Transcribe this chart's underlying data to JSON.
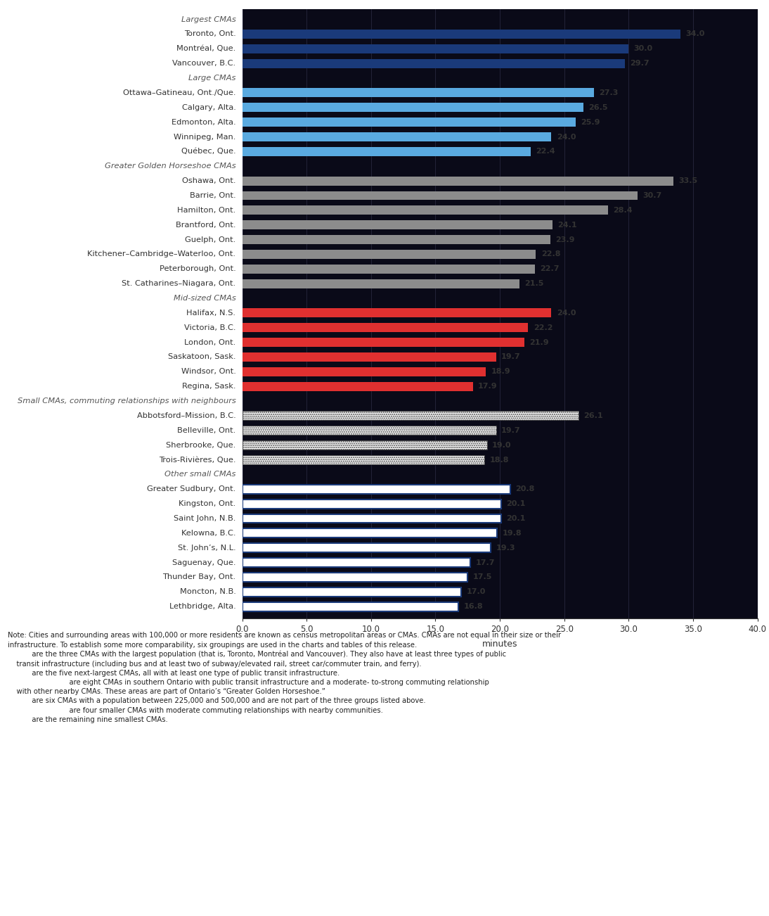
{
  "title": "",
  "xlabel": "minutes",
  "xlim": [
    0,
    40
  ],
  "xticks": [
    0.0,
    5.0,
    10.0,
    15.0,
    20.0,
    25.0,
    30.0,
    35.0,
    40.0
  ],
  "fig_bg": "#ffffff",
  "chart_bg": "#0a0a18",
  "bar_height": 0.62,
  "categories": [
    "Largest CMAs",
    "Toronto, Ont.",
    "Montréal, Que.",
    "Vancouver, B.C.",
    "Large CMAs",
    "Ottawa–Gatineau, Ont./Que.",
    "Calgary, Alta.",
    "Edmonton, Alta.",
    "Winnipeg, Man.",
    "Québec, Que.",
    "Greater Golden Horseshoe CMAs",
    "Oshawa, Ont.",
    "Barrie, Ont.",
    "Hamilton, Ont.",
    "Brantford, Ont.",
    "Guelph, Ont.",
    "Kitchener–Cambridge–Waterloo, Ont.",
    "Peterborough, Ont.",
    "St. Catharines–Niagara, Ont.",
    "Mid-sized CMAs",
    "Halifax, N.S.",
    "Victoria, B.C.",
    "London, Ont.",
    "Saskatoon, Sask.",
    "Windsor, Ont.",
    "Regina, Sask.",
    "Small CMAs, commuting relationships with neighbours",
    "Abbotsford–Mission, B.C.",
    "Belleville, Ont.",
    "Sherbrooke, Que.",
    "Trois-Rivières, Que.",
    "Other small CMAs",
    "Greater Sudbury, Ont.",
    "Kingston, Ont.",
    "Saint John, N.B.",
    "Kelowna, B.C.",
    "St. John’s, N.L.",
    "Saguenay, Que.",
    "Thunder Bay, Ont.",
    "Moncton, N.B.",
    "Lethbridge, Alta."
  ],
  "values": [
    0,
    34.0,
    30.0,
    29.7,
    0,
    27.3,
    26.5,
    25.9,
    24.0,
    22.4,
    0,
    33.5,
    30.7,
    28.4,
    24.1,
    23.9,
    22.8,
    22.7,
    21.5,
    0,
    24.0,
    22.2,
    21.9,
    19.7,
    18.9,
    17.9,
    0,
    26.1,
    19.7,
    19.0,
    18.8,
    0,
    20.8,
    20.1,
    20.1,
    19.8,
    19.3,
    17.7,
    17.5,
    17.0,
    16.8
  ],
  "bar_colors": [
    "header",
    "#1a3a7a",
    "#1a3a7a",
    "#1a3a7a",
    "header",
    "#5aaae0",
    "#5aaae0",
    "#5aaae0",
    "#5aaae0",
    "#5aaae0",
    "header",
    "#8c8c8c",
    "#8c8c8c",
    "#8c8c8c",
    "#8c8c8c",
    "#8c8c8c",
    "#8c8c8c",
    "#8c8c8c",
    "#8c8c8c",
    "header",
    "#e03030",
    "#e03030",
    "#e03030",
    "#e03030",
    "#e03030",
    "#e03030",
    "header",
    "dotted",
    "dotted",
    "dotted",
    "dotted",
    "header",
    "outline",
    "outline",
    "outline",
    "outline",
    "outline",
    "outline",
    "outline",
    "outline",
    "outline"
  ],
  "label_text_color": "#333333",
  "header_text_color": "#555555",
  "value_label_color": "#333333",
  "axis_text_color": "#333333",
  "note_lines": [
    "Note: Cities and surrounding areas with 100,000 or more residents are known as census metropolitan areas or CMAs. CMAs are not equal in their size or their",
    "infrastructure. To establish some more comparability, six groupings are used in the charts and tables of this release.",
    "           are the three CMAs with the largest population (that is, Toronto, Montréal and Vancouver). They also have at least three types of public",
    "    transit infrastructure (including bus and at least two of subway/elevated rail, street car/commuter train, and ferry).",
    "           are the five next-largest CMAs, all with at least one type of public transit infrastructure.",
    "                            are eight CMAs in southern Ontario with public transit infrastructure and a moderate- to-strong commuting relationship",
    "    with other nearby CMAs. These areas are part of Ontario’s “Greater Golden Horseshoe.”",
    "           are six CMAs with a population between 225,000 and 500,000 and are not part of the three groups listed above.",
    "                            are four smaller CMAs with moderate commuting relationships with nearby communities.",
    "           are the remaining nine smallest CMAs."
  ]
}
